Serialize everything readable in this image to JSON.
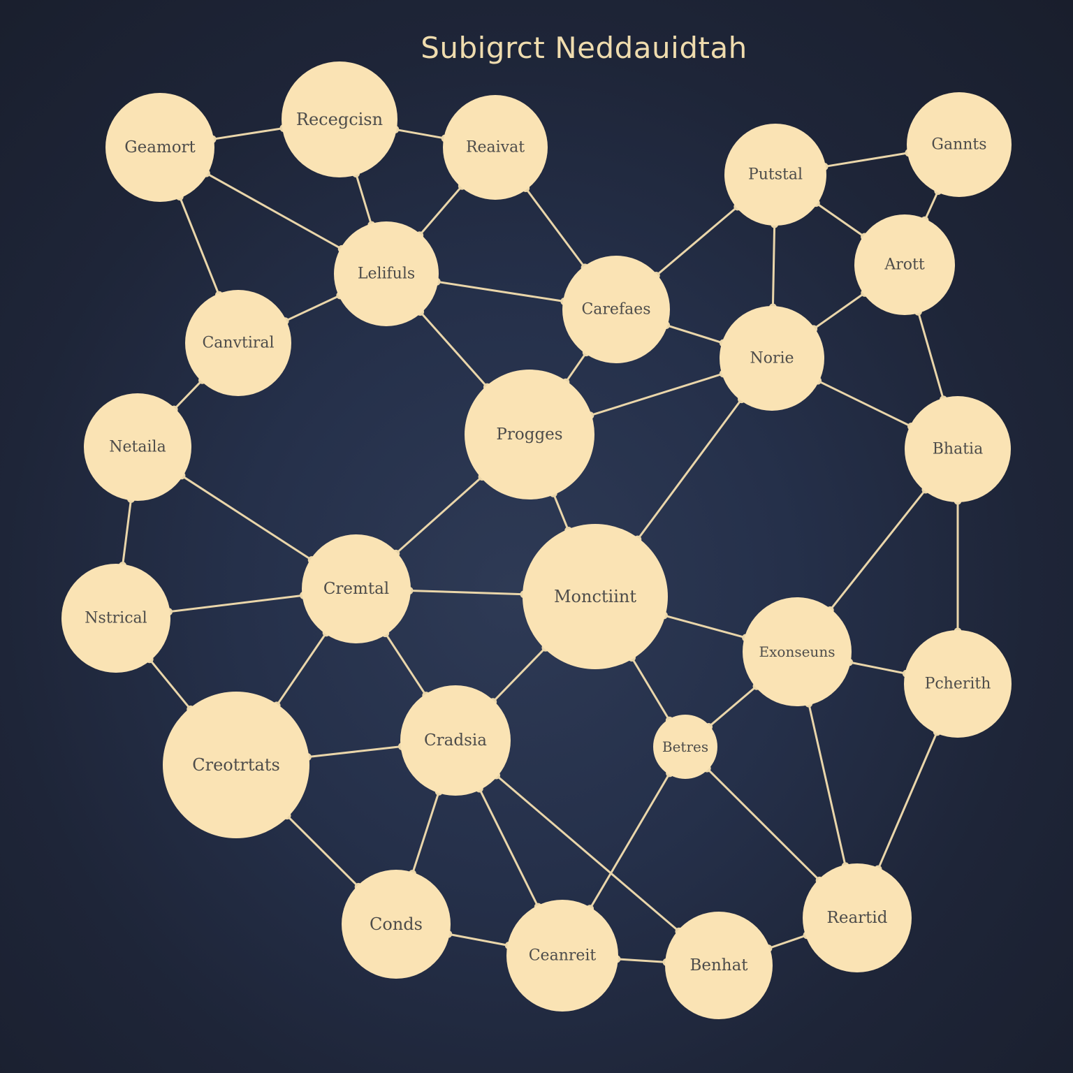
{
  "title": "Subigrct Neddauidtah",
  "colors": {
    "background": "#1e2538",
    "node_fill": "#fae3b4",
    "edge": "#ead6aa",
    "node_text": "#4d4c4a",
    "title_text": "#efdcae"
  },
  "nodes": [
    {
      "id": "geamort",
      "label": "Geamort"
    },
    {
      "id": "recegcisen",
      "label": "Recegcisn"
    },
    {
      "id": "reaivat",
      "label": "Reaivat"
    },
    {
      "id": "putstal",
      "label": "Putstal"
    },
    {
      "id": "gannts",
      "label": "Gannts"
    },
    {
      "id": "letifuls",
      "label": "Lelifuls"
    },
    {
      "id": "carefaes",
      "label": "Carefaes"
    },
    {
      "id": "arott",
      "label": "Arott"
    },
    {
      "id": "canvtiral",
      "label": "Canvtiral"
    },
    {
      "id": "norie",
      "label": "Norie"
    },
    {
      "id": "netaila",
      "label": "Netaila"
    },
    {
      "id": "progges",
      "label": "Progges"
    },
    {
      "id": "bhatia",
      "label": "Bhatia"
    },
    {
      "id": "cremtal",
      "label": "Cremtal"
    },
    {
      "id": "monctiint",
      "label": "Monctiint"
    },
    {
      "id": "nstrical",
      "label": "Nstrical"
    },
    {
      "id": "exonseuns",
      "label": "Exonseuns"
    },
    {
      "id": "pcherith",
      "label": "Pcherith"
    },
    {
      "id": "creotrtats",
      "label": "Creotrtats"
    },
    {
      "id": "cradsia",
      "label": "Cradsia"
    },
    {
      "id": "betres",
      "label": "Betres"
    },
    {
      "id": "conds",
      "label": "Conds"
    },
    {
      "id": "ceanreit",
      "label": "Ceanreit"
    },
    {
      "id": "benhat",
      "label": "Benhat"
    },
    {
      "id": "reartid",
      "label": "Reartid"
    }
  ],
  "edges": [
    [
      "geamort",
      "recegcisen"
    ],
    [
      "recegcisen",
      "reaivat"
    ],
    [
      "geamort",
      "letifuls"
    ],
    [
      "geamort",
      "canvtiral"
    ],
    [
      "recegcisen",
      "letifuls"
    ],
    [
      "reaivat",
      "letifuls"
    ],
    [
      "reaivat",
      "carefaes"
    ],
    [
      "letifuls",
      "canvtiral"
    ],
    [
      "letifuls",
      "carefaes"
    ],
    [
      "letifuls",
      "progges"
    ],
    [
      "canvtiral",
      "netaila"
    ],
    [
      "putstal",
      "gannts"
    ],
    [
      "putstal",
      "carefaes"
    ],
    [
      "putstal",
      "norie"
    ],
    [
      "putstal",
      "arott"
    ],
    [
      "gannts",
      "arott"
    ],
    [
      "arott",
      "norie"
    ],
    [
      "arott",
      "bhatia"
    ],
    [
      "carefaes",
      "norie"
    ],
    [
      "carefaes",
      "progges"
    ],
    [
      "norie",
      "progges"
    ],
    [
      "norie",
      "bhatia"
    ],
    [
      "norie",
      "monctiint"
    ],
    [
      "netaila",
      "cremtal"
    ],
    [
      "netaila",
      "nstrical"
    ],
    [
      "progges",
      "cremtal"
    ],
    [
      "progges",
      "monctiint"
    ],
    [
      "bhatia",
      "exonseuns"
    ],
    [
      "bhatia",
      "pcherith"
    ],
    [
      "cremtal",
      "monctiint"
    ],
    [
      "cremtal",
      "nstrical"
    ],
    [
      "cremtal",
      "creotrtats"
    ],
    [
      "cremtal",
      "cradsia"
    ],
    [
      "nstrical",
      "creotrtats"
    ],
    [
      "monctiint",
      "exonseuns"
    ],
    [
      "monctiint",
      "cradsia"
    ],
    [
      "monctiint",
      "betres"
    ],
    [
      "exonseuns",
      "pcherith"
    ],
    [
      "exonseuns",
      "betres"
    ],
    [
      "exonseuns",
      "reartid"
    ],
    [
      "pcherith",
      "reartid"
    ],
    [
      "creotrtats",
      "cradsia"
    ],
    [
      "creotrtats",
      "conds"
    ],
    [
      "cradsia",
      "conds"
    ],
    [
      "cradsia",
      "ceanreit"
    ],
    [
      "cradsia",
      "benhat"
    ],
    [
      "betres",
      "ceanreit"
    ],
    [
      "betres",
      "reartid"
    ],
    [
      "conds",
      "ceanreit"
    ],
    [
      "ceanreit",
      "benhat"
    ],
    [
      "benhat",
      "reartid"
    ]
  ]
}
